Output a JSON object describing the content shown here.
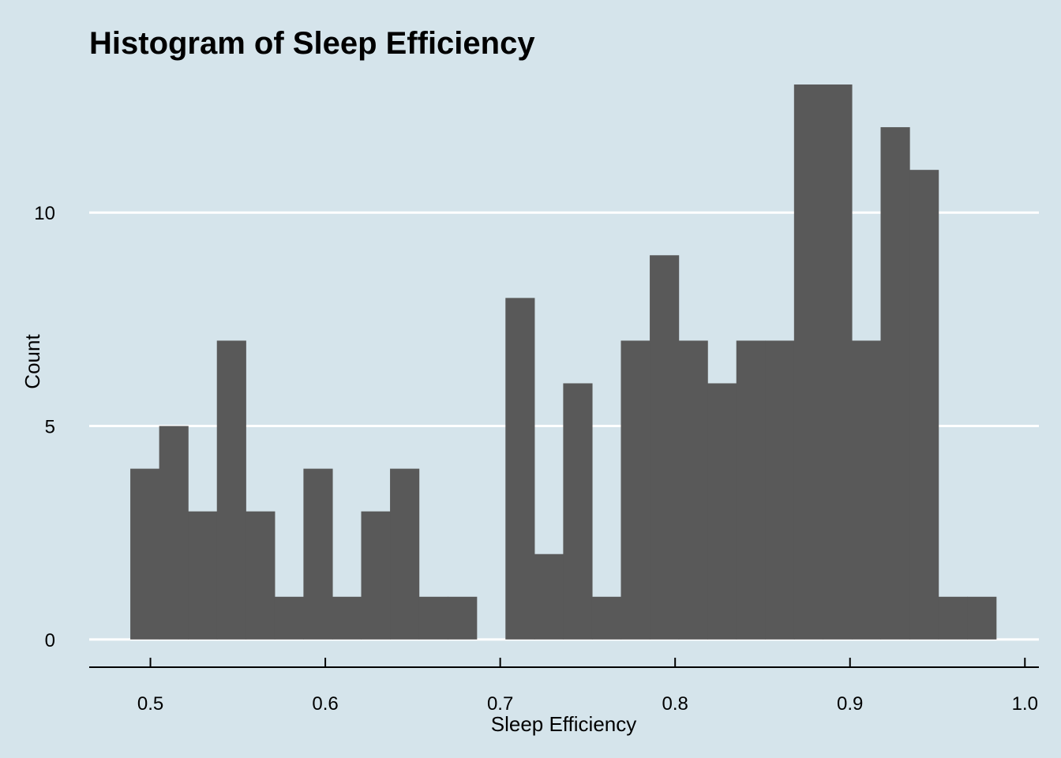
{
  "chart_data": {
    "type": "bar",
    "title": "Histogram of Sleep Efficiency",
    "xlabel": "Sleep Efficiency",
    "ylabel": "Count",
    "xlim": [
      0.465,
      1.008
    ],
    "ylim": [
      -0.65,
      13.5
    ],
    "x_ticks": [
      0.5,
      0.6,
      0.7,
      0.8,
      0.9,
      1.0
    ],
    "x_tick_labels": [
      "0.5",
      "0.6",
      "0.7",
      "0.8",
      "0.9",
      "1.0"
    ],
    "y_ticks": [
      0,
      5,
      10
    ],
    "y_tick_labels": [
      "0",
      "5",
      "10"
    ],
    "grid": "horizontal",
    "bin_width": 0.0165,
    "bins": [
      {
        "start": 0.4885,
        "count": 4
      },
      {
        "start": 0.505,
        "count": 5
      },
      {
        "start": 0.5215,
        "count": 3
      },
      {
        "start": 0.538,
        "count": 7
      },
      {
        "start": 0.5545,
        "count": 3
      },
      {
        "start": 0.571,
        "count": 1
      },
      {
        "start": 0.5875,
        "count": 4
      },
      {
        "start": 0.604,
        "count": 1
      },
      {
        "start": 0.6205,
        "count": 3
      },
      {
        "start": 0.637,
        "count": 4
      },
      {
        "start": 0.6535,
        "count": 1
      },
      {
        "start": 0.67,
        "count": 1
      },
      {
        "start": 0.6865,
        "count": 0
      },
      {
        "start": 0.703,
        "count": 8
      },
      {
        "start": 0.7195,
        "count": 2
      },
      {
        "start": 0.736,
        "count": 6
      },
      {
        "start": 0.7525,
        "count": 1
      },
      {
        "start": 0.769,
        "count": 7
      },
      {
        "start": 0.7855,
        "count": 9
      },
      {
        "start": 0.802,
        "count": 7
      },
      {
        "start": 0.8185,
        "count": 6
      },
      {
        "start": 0.835,
        "count": 7
      },
      {
        "start": 0.8515,
        "count": 7
      },
      {
        "start": 0.868,
        "count": 13
      },
      {
        "start": 0.8845,
        "count": 13
      },
      {
        "start": 0.901,
        "count": 7
      },
      {
        "start": 0.9175,
        "count": 12
      },
      {
        "start": 0.934,
        "count": 11
      },
      {
        "start": 0.9505,
        "count": 1
      },
      {
        "start": 0.967,
        "count": 1
      }
    ]
  }
}
